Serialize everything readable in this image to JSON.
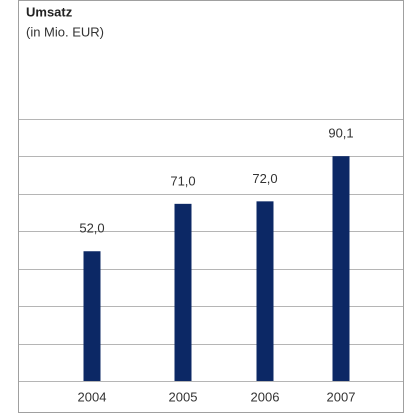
{
  "chart_data": {
    "type": "bar",
    "title": "Umsatz",
    "subtitle": "(in Mio. EUR)",
    "categories": [
      "2004",
      "2005",
      "2006",
      "2007"
    ],
    "values": [
      52.0,
      71.0,
      72.0,
      90.1
    ],
    "value_labels": [
      "52,0",
      "71,0",
      "72,0",
      "90,1"
    ],
    "color": "#0c2865",
    "ylim": [
      0,
      105
    ],
    "yticks": [
      0,
      15,
      30,
      45,
      60,
      75,
      90,
      105
    ],
    "grid": true
  }
}
